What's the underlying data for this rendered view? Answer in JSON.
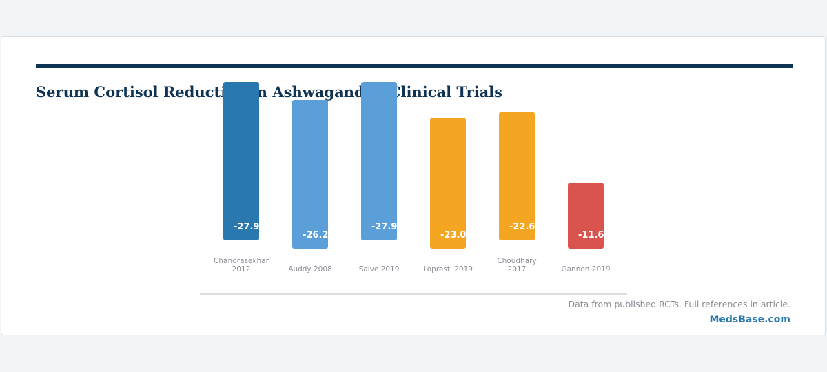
{
  "colors": {
    "page_bg": "#f2f5f8",
    "rule": "#0f3352",
    "title": "#0f3352",
    "brand": "#2a78b0",
    "tick_label": "#8a8f96",
    "value_label": "#ffffff",
    "axis_line": "#d0d3d8"
  },
  "footnote": "Data from published RCTs. Full references in article.",
  "brand": "MedsBase.com",
  "chart_data": {
    "type": "bar",
    "title": "Serum Cortisol Reduction in Ashwagandha Clinical Trials",
    "xlabel": "",
    "ylabel": "",
    "grid": false,
    "categories": [
      [
        "Chandrasekhar",
        "2012"
      ],
      [
        "Auddy 2008"
      ],
      [
        "Salve 2019"
      ],
      [
        "Lopresti 2019"
      ],
      [
        "Choudhary",
        "2017"
      ],
      [
        "Gannon 2019"
      ]
    ],
    "values": [
      -27.9,
      -26.2,
      -27.9,
      -23.0,
      -22.6,
      -11.6
    ],
    "labels": [
      "-27.9",
      "-26.2",
      "-27.9",
      "-23.0",
      "-22.6",
      "-11.6"
    ],
    "colors": [
      "#2a78b0",
      "#5a9fd8",
      "#5a9fd8",
      "#f4a623",
      "#f4a623",
      "#d9534f"
    ]
  }
}
